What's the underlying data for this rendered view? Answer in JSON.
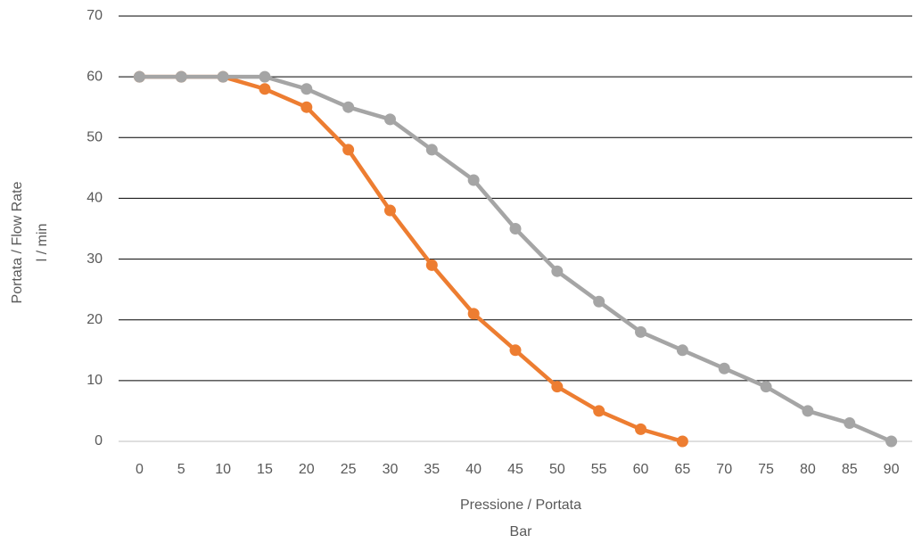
{
  "chart_data": {
    "type": "line",
    "x_label": [
      "Pressione / Portata",
      "Bar"
    ],
    "y_label": [
      "Portata / Flow Rate",
      "l / min"
    ],
    "categories": [
      "0",
      "5",
      "10",
      "15",
      "20",
      "25",
      "30",
      "35",
      "40",
      "45",
      "50",
      "55",
      "60",
      "65",
      "70",
      "75",
      "80",
      "85",
      "90"
    ],
    "series": [
      {
        "color": "#ed7d31",
        "values": [
          60,
          60,
          60,
          58,
          55,
          48,
          38,
          29,
          21,
          15,
          9,
          5,
          2,
          0,
          null,
          null,
          null,
          null,
          null
        ]
      },
      {
        "color": "#a5a5a5",
        "values": [
          60,
          60,
          60,
          60,
          58,
          55,
          53,
          48,
          43,
          35,
          28,
          23,
          18,
          15,
          12,
          9,
          5,
          3,
          0
        ]
      }
    ],
    "ylim": [
      0,
      70
    ],
    "yticks": [
      0,
      10,
      20,
      30,
      40,
      50,
      60,
      70
    ],
    "grid": true
  }
}
